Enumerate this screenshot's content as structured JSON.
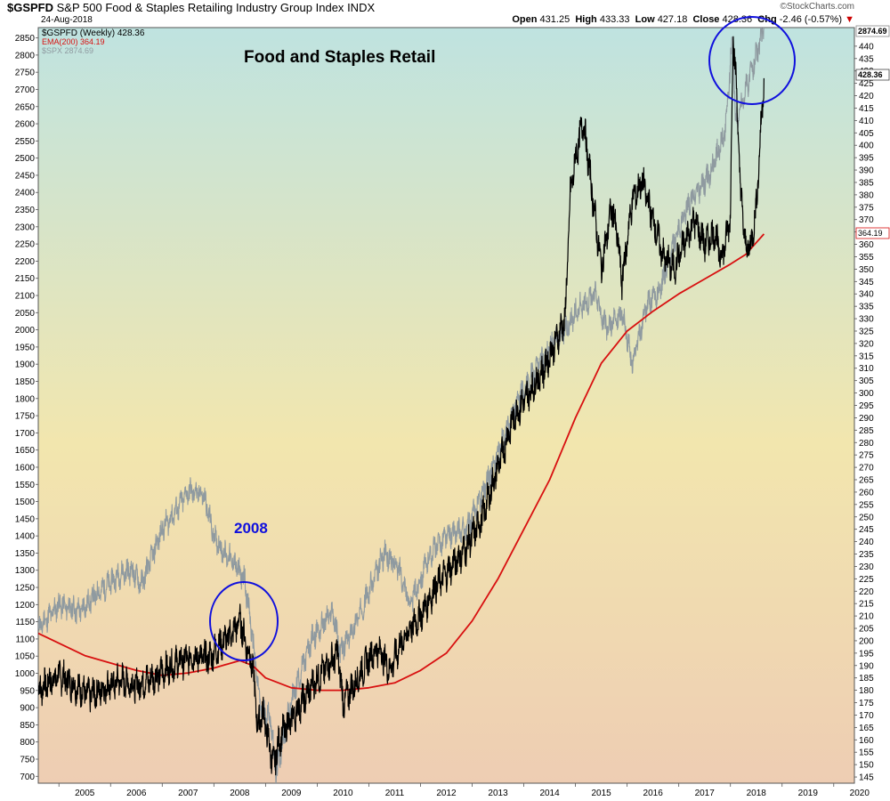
{
  "header": {
    "symbol": "$GSPFD",
    "name": "S&P 500 Food & Staples Retailing Industry Group Index",
    "exchange": "INDX",
    "date": "24-Aug-2018",
    "open_label": "Open",
    "open": "431.25",
    "high_label": "High",
    "high": "433.33",
    "low_label": "Low",
    "low": "427.18",
    "close_label": "Close",
    "close": "428.36",
    "chg_label": "Chg",
    "chg": "-2.46 (-0.57%)",
    "chg_arrow": "▼",
    "watermark": "©StockCharts.com"
  },
  "legend": {
    "main": "$GSPFD (Weekly) 428.36",
    "ema": "EMA(200) 364.19",
    "spx": "$SPX 2874.69"
  },
  "annotations": {
    "title": "Food and Staples Retail",
    "label_2008": "2008"
  },
  "price_tags": {
    "spx": "2874.69",
    "main": "428.36",
    "ema": "364.19"
  },
  "colors": {
    "main": "#000000",
    "ema": "#d81010",
    "spx": "#8f9aa0",
    "circle": "#1010dd",
    "bg_top": "#bfe3e0",
    "bg_mid": "#f2e6ae",
    "bg_bottom": "#eecdb3"
  },
  "chart_data": {
    "type": "line",
    "title": "Food and Staples Retail",
    "x_ticks": [
      "2005",
      "2006",
      "2007",
      "2008",
      "2009",
      "2010",
      "2011",
      "2012",
      "2013",
      "2014",
      "2015",
      "2016",
      "2017",
      "2018",
      "2019",
      "2020"
    ],
    "left_axis": {
      "ylim": [
        680,
        2880
      ],
      "ticks": [
        700,
        750,
        800,
        850,
        900,
        950,
        1000,
        1050,
        1100,
        1150,
        1200,
        1250,
        1300,
        1350,
        1400,
        1450,
        1500,
        1550,
        1600,
        1650,
        1700,
        1750,
        1800,
        1850,
        1900,
        1950,
        2000,
        2050,
        2100,
        2150,
        2200,
        2250,
        2300,
        2350,
        2400,
        2450,
        2500,
        2550,
        2600,
        2650,
        2700,
        2750,
        2800,
        2850
      ]
    },
    "right_axis": {
      "ylim": [
        142.5,
        447.5
      ],
      "ticks": [
        145,
        150,
        155,
        160,
        165,
        170,
        175,
        180,
        185,
        190,
        195,
        200,
        205,
        210,
        215,
        220,
        225,
        230,
        235,
        240,
        245,
        250,
        255,
        260,
        265,
        270,
        275,
        280,
        285,
        290,
        295,
        300,
        305,
        310,
        315,
        320,
        325,
        330,
        335,
        340,
        345,
        350,
        355,
        360,
        365,
        370,
        375,
        380,
        385,
        390,
        395,
        400,
        405,
        410,
        415,
        420,
        425,
        430,
        435,
        440
      ]
    },
    "series": [
      {
        "name": "$GSPFD (Weekly)",
        "axis": "right",
        "x": [
          2004.6,
          2005.0,
          2005.3,
          2005.6,
          2005.9,
          2006.2,
          2006.5,
          2006.9,
          2007.2,
          2007.6,
          2007.9,
          2008.2,
          2008.4,
          2008.5,
          2008.6,
          2008.75,
          2008.85,
          2008.95,
          2009.05,
          2009.15,
          2009.3,
          2009.5,
          2009.7,
          2009.9,
          2010.2,
          2010.4,
          2010.5,
          2010.65,
          2010.8,
          2011.0,
          2011.2,
          2011.4,
          2011.6,
          2011.8,
          2012.0,
          2012.3,
          2012.6,
          2012.9,
          2013.2,
          2013.5,
          2013.8,
          2014.1,
          2014.4,
          2014.6,
          2014.8,
          2014.9,
          2015.0,
          2015.15,
          2015.3,
          2015.5,
          2015.7,
          2015.8,
          2015.9,
          2016.1,
          2016.3,
          2016.5,
          2016.7,
          2016.9,
          2017.1,
          2017.3,
          2017.5,
          2017.7,
          2017.8,
          2017.9,
          2018.0,
          2018.05,
          2018.1,
          2018.2,
          2018.3,
          2018.4,
          2018.5,
          2018.6,
          2018.65
        ],
        "values": [
          180,
          186,
          182,
          178,
          181,
          184,
          182,
          186,
          190,
          194,
          193,
          200,
          204,
          209,
          200,
          190,
          165,
          172,
          160,
          150,
          162,
          168,
          175,
          182,
          190,
          195,
          175,
          180,
          185,
          193,
          197,
          188,
          198,
          205,
          210,
          222,
          230,
          238,
          250,
          270,
          290,
          300,
          310,
          320,
          330,
          380,
          395,
          410,
          385,
          350,
          375,
          365,
          345,
          378,
          385,
          370,
          355,
          350,
          360,
          370,
          360,
          365,
          355,
          360,
          372,
          445,
          430,
          380,
          358,
          360,
          375,
          410,
          428
        ]
      },
      {
        "name": "EMA(200)",
        "axis": "right",
        "x": [
          2004.6,
          2005.0,
          2005.5,
          2006.0,
          2006.5,
          2007.0,
          2007.5,
          2008.0,
          2008.5,
          2008.75,
          2009.0,
          2009.5,
          2010.0,
          2010.5,
          2011.0,
          2011.5,
          2012.0,
          2012.5,
          2013.0,
          2013.5,
          2014.0,
          2014.5,
          2015.0,
          2015.5,
          2016.0,
          2016.5,
          2017.0,
          2017.5,
          2018.0,
          2018.3,
          2018.65
        ],
        "values": [
          203,
          199,
          194,
          191,
          188,
          186,
          187,
          189,
          192,
          190,
          185,
          181,
          180,
          180,
          181,
          183,
          188,
          195,
          208,
          225,
          245,
          265,
          290,
          312,
          325,
          333,
          340,
          346,
          352,
          356,
          364.19
        ]
      },
      {
        "name": "$SPX",
        "axis": "left",
        "x": [
          2004.6,
          2005.0,
          2005.4,
          2005.8,
          2006.2,
          2006.4,
          2006.6,
          2007.0,
          2007.3,
          2007.5,
          2007.8,
          2008.0,
          2008.2,
          2008.4,
          2008.6,
          2008.75,
          2008.9,
          2009.1,
          2009.2,
          2009.5,
          2009.9,
          2010.3,
          2010.45,
          2010.6,
          2010.9,
          2011.3,
          2011.6,
          2011.8,
          2012.2,
          2012.5,
          2012.9,
          2013.4,
          2013.9,
          2014.5,
          2014.8,
          2015.1,
          2015.4,
          2015.6,
          2015.9,
          2016.1,
          2016.4,
          2016.6,
          2016.9,
          2017.2,
          2017.6,
          2017.9,
          2018.05,
          2018.1,
          2018.3,
          2018.5,
          2018.65
        ],
        "values": [
          1130,
          1200,
          1180,
          1240,
          1290,
          1300,
          1260,
          1420,
          1480,
          1530,
          1520,
          1400,
          1350,
          1320,
          1270,
          1100,
          900,
          870,
          700,
          920,
          1100,
          1180,
          1060,
          1100,
          1200,
          1350,
          1300,
          1200,
          1350,
          1400,
          1420,
          1600,
          1800,
          1950,
          2000,
          2070,
          2100,
          2000,
          2050,
          1900,
          2080,
          2100,
          2250,
          2370,
          2450,
          2580,
          2870,
          2600,
          2700,
          2800,
          2875
        ]
      }
    ]
  }
}
